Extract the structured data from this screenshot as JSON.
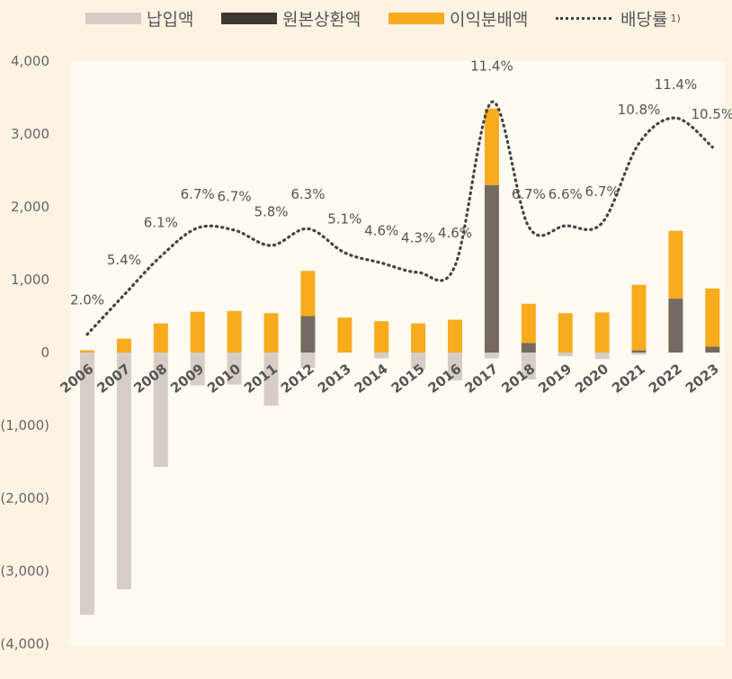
{
  "legend": {
    "payment": "납입액",
    "principal": "원본상환액",
    "profit": "이익분배액",
    "rate": "배당률",
    "rate_note": "1)"
  },
  "colors": {
    "payment": "#d6cdc6",
    "principal": "#756a60",
    "profit": "#f7ab1d",
    "rate_line": "#444444",
    "background": "#fdf3e3"
  },
  "chart_data": {
    "type": "bar",
    "stacked": true,
    "categories": [
      "2006",
      "2007",
      "2008",
      "2009",
      "2010",
      "2011",
      "2012",
      "2013",
      "2014",
      "2015",
      "2016",
      "2017",
      "2018",
      "2019",
      "2020",
      "2021",
      "2022",
      "2023"
    ],
    "ylim": [
      -4000,
      4000
    ],
    "yticks": [
      4000,
      3000,
      2000,
      1000,
      0,
      -1000,
      -2000,
      -3000,
      -4000
    ],
    "ytick_labels": [
      "4,000",
      "3,000",
      "2,000",
      "1,000",
      "0",
      "(1,000)",
      "(2,000)",
      "(3,000)",
      "(4,000)"
    ],
    "series": [
      {
        "name": "납입액",
        "values": [
          -3600,
          -3250,
          -1570,
          -450,
          -440,
          -730,
          -210,
          0,
          -80,
          -230,
          -380,
          -80,
          -370,
          -50,
          -90,
          -30,
          0,
          0
        ]
      },
      {
        "name": "원본상환액",
        "values": [
          0,
          0,
          0,
          0,
          0,
          0,
          500,
          0,
          0,
          0,
          0,
          2300,
          130,
          0,
          0,
          30,
          740,
          80
        ]
      },
      {
        "name": "이익분배액",
        "values": [
          30,
          190,
          400,
          560,
          570,
          540,
          620,
          480,
          430,
          400,
          450,
          1050,
          540,
          540,
          550,
          900,
          930,
          800
        ]
      }
    ],
    "rate_series": {
      "name": "배당률",
      "positions": [
        250,
        790,
        1320,
        1710,
        1680,
        1470,
        1700,
        1370,
        1230,
        1100,
        1190,
        3440,
        1730,
        1740,
        1780,
        2870,
        3220,
        2820
      ],
      "labels": [
        "2.0%",
        "5.4%",
        "6.1%",
        "6.7%",
        "6.7%",
        "5.8%",
        "6.3%",
        "5.1%",
        "4.6%",
        "4.3%",
        "4.6%",
        "11.4%",
        "6.7%",
        "6.6%",
        "6.7%",
        "10.8%",
        "11.4%",
        "10.5%"
      ],
      "label_positions": [
        660,
        1210,
        1720,
        2110,
        2080,
        1870,
        2110,
        1770,
        1610,
        1510,
        1580,
        3870,
        2110,
        2110,
        2150,
        3270,
        3620,
        3210
      ]
    }
  }
}
